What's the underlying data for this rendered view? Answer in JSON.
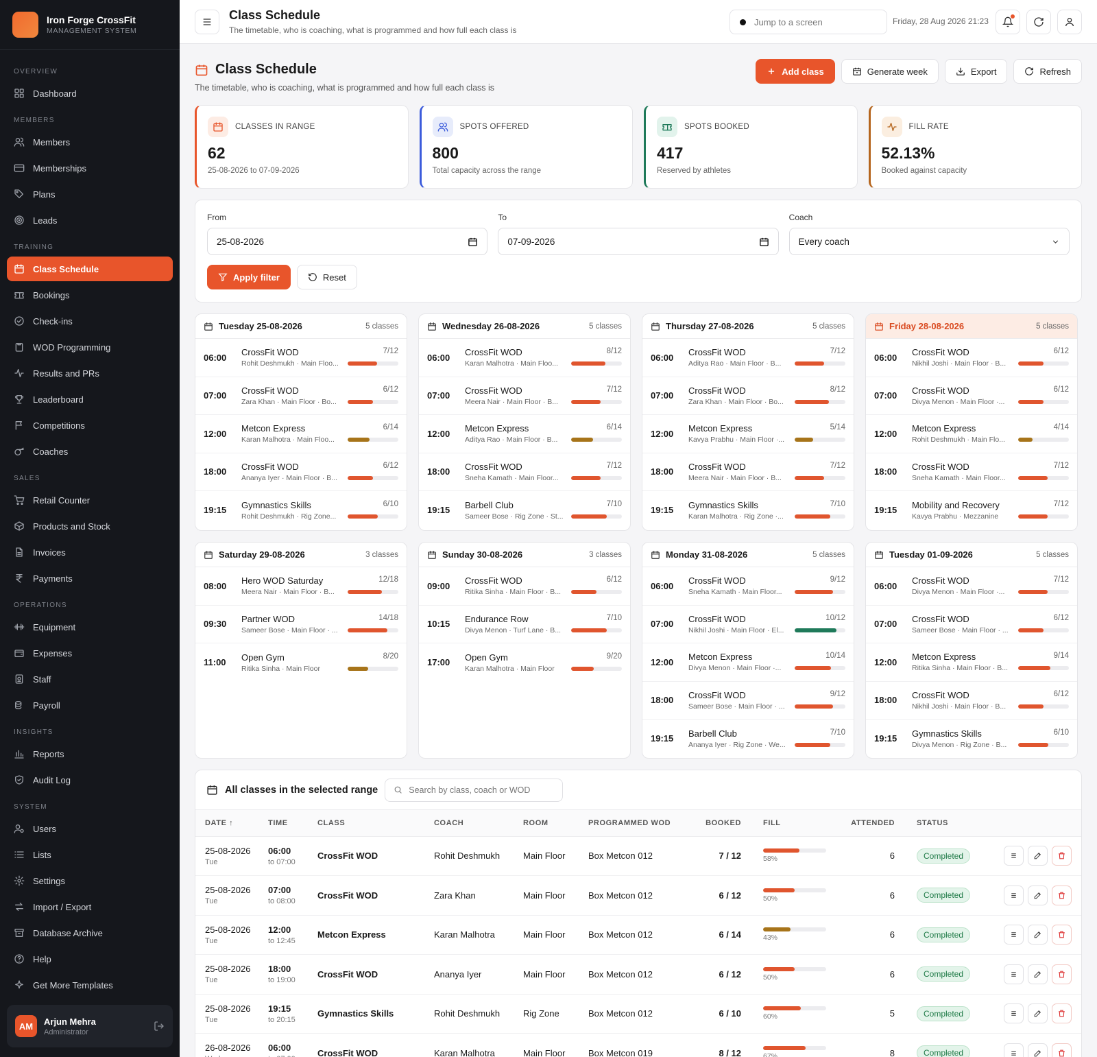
{
  "brand": {
    "name": "Iron Forge CrossFit",
    "sub": "MANAGEMENT SYSTEM"
  },
  "nav": [
    {
      "section": "OVERVIEW",
      "items": [
        {
          "label": "Dashboard",
          "icon": "dashboard-icon"
        }
      ]
    },
    {
      "section": "MEMBERS",
      "items": [
        {
          "label": "Members",
          "icon": "users-icon"
        },
        {
          "label": "Memberships",
          "icon": "card-icon"
        },
        {
          "label": "Plans",
          "icon": "tag-icon"
        },
        {
          "label": "Leads",
          "icon": "target-icon"
        }
      ]
    },
    {
      "section": "TRAINING",
      "items": [
        {
          "label": "Class Schedule",
          "icon": "calendar-icon",
          "active": true
        },
        {
          "label": "Bookings",
          "icon": "ticket-icon"
        },
        {
          "label": "Check-ins",
          "icon": "check-circle-icon"
        },
        {
          "label": "WOD Programming",
          "icon": "clipboard-icon"
        },
        {
          "label": "Results and PRs",
          "icon": "activity-icon"
        },
        {
          "label": "Leaderboard",
          "icon": "trophy-icon"
        },
        {
          "label": "Competitions",
          "icon": "flag-icon"
        },
        {
          "label": "Coaches",
          "icon": "whistle-icon"
        }
      ]
    },
    {
      "section": "SALES",
      "items": [
        {
          "label": "Retail Counter",
          "icon": "cart-icon"
        },
        {
          "label": "Products and Stock",
          "icon": "box-icon"
        },
        {
          "label": "Invoices",
          "icon": "file-icon"
        },
        {
          "label": "Payments",
          "icon": "rupee-icon"
        }
      ]
    },
    {
      "section": "OPERATIONS",
      "items": [
        {
          "label": "Equipment",
          "icon": "dumbbell-icon"
        },
        {
          "label": "Expenses",
          "icon": "wallet-icon"
        },
        {
          "label": "Staff",
          "icon": "badge-icon"
        },
        {
          "label": "Payroll",
          "icon": "coins-icon"
        }
      ]
    },
    {
      "section": "INSIGHTS",
      "items": [
        {
          "label": "Reports",
          "icon": "bar-chart-icon"
        },
        {
          "label": "Audit Log",
          "icon": "shield-icon"
        }
      ]
    },
    {
      "section": "SYSTEM",
      "items": [
        {
          "label": "Users",
          "icon": "user-cog-icon"
        },
        {
          "label": "Lists",
          "icon": "list-icon"
        },
        {
          "label": "Settings",
          "icon": "gear-icon"
        },
        {
          "label": "Import / Export",
          "icon": "swap-icon"
        },
        {
          "label": "Database Archive",
          "icon": "archive-icon"
        },
        {
          "label": "Help",
          "icon": "help-icon"
        },
        {
          "label": "Get More Templates",
          "icon": "sparkle-icon"
        }
      ]
    }
  ],
  "user": {
    "initials": "AM",
    "name": "Arjun Mehra",
    "role": "Administrator"
  },
  "topbar": {
    "title": "Class Schedule",
    "subtitle": "The timetable, who is coaching, what is programmed and how full each class is",
    "search_placeholder": "Jump to a screen",
    "datetime": "Friday, 28 Aug 2026 21:23"
  },
  "page": {
    "title": "Class Schedule",
    "subtitle": "The timetable, who is coaching, what is programmed and how full each class is",
    "actions": {
      "add": "Add class",
      "generate": "Generate week",
      "export": "Export",
      "refresh": "Refresh"
    }
  },
  "stats": [
    {
      "label": "CLASSES IN RANGE",
      "value": "62",
      "sub": "25-08-2026 to 07-09-2026",
      "color": "#e8552b",
      "bg": "#fdece4",
      "icon": "calendar-icon"
    },
    {
      "label": "SPOTS OFFERED",
      "value": "800",
      "sub": "Total capacity across the range",
      "color": "#3b5bdb",
      "bg": "#e7ecfb",
      "icon": "users-icon"
    },
    {
      "label": "SPOTS BOOKED",
      "value": "417",
      "sub": "Reserved by athletes",
      "color": "#1f7a5a",
      "bg": "#e2f3ec",
      "icon": "ticket-icon"
    },
    {
      "label": "FILL RATE",
      "value": "52.13%",
      "sub": "Booked against capacity",
      "color": "#b5651d",
      "bg": "#fbeee0",
      "icon": "activity-icon"
    }
  ],
  "filter": {
    "from_label": "From",
    "from": "25-08-2026",
    "to_label": "To",
    "to": "07-09-2026",
    "coach_label": "Coach",
    "coach": "Every coach",
    "apply": "Apply filter",
    "reset": "Reset"
  },
  "days": [
    {
      "title": "Tuesday 25-08-2026",
      "count": "5 classes",
      "classes": [
        {
          "time": "06:00",
          "name": "CrossFit WOD",
          "cap": "7/12",
          "meta": "Rohit Deshmukh · Main Floo...",
          "fill": 0.58,
          "color": "#e0552e"
        },
        {
          "time": "07:00",
          "name": "CrossFit WOD",
          "cap": "6/12",
          "meta": "Zara Khan · Main Floor · Bo...",
          "fill": 0.5,
          "color": "#e0552e"
        },
        {
          "time": "12:00",
          "name": "Metcon Express",
          "cap": "6/14",
          "meta": "Karan Malhotra · Main Floo...",
          "fill": 0.43,
          "color": "#a7741a"
        },
        {
          "time": "18:00",
          "name": "CrossFit WOD",
          "cap": "6/12",
          "meta": "Ananya Iyer · Main Floor · B...",
          "fill": 0.5,
          "color": "#e0552e"
        },
        {
          "time": "19:15",
          "name": "Gymnastics Skills",
          "cap": "6/10",
          "meta": "Rohit Deshmukh · Rig Zone...",
          "fill": 0.6,
          "color": "#e0552e"
        }
      ]
    },
    {
      "title": "Wednesday 26-08-2026",
      "count": "5 classes",
      "classes": [
        {
          "time": "06:00",
          "name": "CrossFit WOD",
          "cap": "8/12",
          "meta": "Karan Malhotra · Main Floo...",
          "fill": 0.67,
          "color": "#e0552e"
        },
        {
          "time": "07:00",
          "name": "CrossFit WOD",
          "cap": "7/12",
          "meta": "Meera Nair · Main Floor · B...",
          "fill": 0.58,
          "color": "#e0552e"
        },
        {
          "time": "12:00",
          "name": "Metcon Express",
          "cap": "6/14",
          "meta": "Aditya Rao · Main Floor · B...",
          "fill": 0.43,
          "color": "#a7741a"
        },
        {
          "time": "18:00",
          "name": "CrossFit WOD",
          "cap": "7/12",
          "meta": "Sneha Kamath · Main Floor...",
          "fill": 0.58,
          "color": "#e0552e"
        },
        {
          "time": "19:15",
          "name": "Barbell Club",
          "cap": "7/10",
          "meta": "Sameer Bose · Rig Zone · St...",
          "fill": 0.7,
          "color": "#e0552e"
        }
      ]
    },
    {
      "title": "Thursday 27-08-2026",
      "count": "5 classes",
      "classes": [
        {
          "time": "06:00",
          "name": "CrossFit WOD",
          "cap": "7/12",
          "meta": "Aditya Rao · Main Floor · B...",
          "fill": 0.58,
          "color": "#e0552e"
        },
        {
          "time": "07:00",
          "name": "CrossFit WOD",
          "cap": "8/12",
          "meta": "Zara Khan · Main Floor · Bo...",
          "fill": 0.67,
          "color": "#e0552e"
        },
        {
          "time": "12:00",
          "name": "Metcon Express",
          "cap": "5/14",
          "meta": "Kavya Prabhu · Main Floor ·...",
          "fill": 0.36,
          "color": "#a7741a"
        },
        {
          "time": "18:00",
          "name": "CrossFit WOD",
          "cap": "7/12",
          "meta": "Meera Nair · Main Floor · B...",
          "fill": 0.58,
          "color": "#e0552e"
        },
        {
          "time": "19:15",
          "name": "Gymnastics Skills",
          "cap": "7/10",
          "meta": "Karan Malhotra · Rig Zone ·...",
          "fill": 0.7,
          "color": "#e0552e"
        }
      ]
    },
    {
      "title": "Friday 28-08-2026",
      "count": "5 classes",
      "today": true,
      "classes": [
        {
          "time": "06:00",
          "name": "CrossFit WOD",
          "cap": "6/12",
          "meta": "Nikhil Joshi · Main Floor · B...",
          "fill": 0.5,
          "color": "#e0552e"
        },
        {
          "time": "07:00",
          "name": "CrossFit WOD",
          "cap": "6/12",
          "meta": "Divya Menon · Main Floor ·...",
          "fill": 0.5,
          "color": "#e0552e"
        },
        {
          "time": "12:00",
          "name": "Metcon Express",
          "cap": "4/14",
          "meta": "Rohit Deshmukh · Main Flo...",
          "fill": 0.29,
          "color": "#a7741a"
        },
        {
          "time": "18:00",
          "name": "CrossFit WOD",
          "cap": "7/12",
          "meta": "Sneha Kamath · Main Floor...",
          "fill": 0.58,
          "color": "#e0552e"
        },
        {
          "time": "19:15",
          "name": "Mobility and Recovery",
          "cap": "7/12",
          "meta": "Kavya Prabhu · Mezzanine",
          "fill": 0.58,
          "color": "#e0552e"
        }
      ]
    },
    {
      "title": "Saturday 29-08-2026",
      "count": "3 classes",
      "classes": [
        {
          "time": "08:00",
          "name": "Hero WOD Saturday",
          "cap": "12/18",
          "meta": "Meera Nair · Main Floor · B...",
          "fill": 0.67,
          "color": "#e0552e"
        },
        {
          "time": "09:30",
          "name": "Partner WOD",
          "cap": "14/18",
          "meta": "Sameer Bose · Main Floor · ...",
          "fill": 0.78,
          "color": "#e0552e"
        },
        {
          "time": "11:00",
          "name": "Open Gym",
          "cap": "8/20",
          "meta": "Ritika Sinha · Main Floor",
          "fill": 0.4,
          "color": "#a7741a"
        }
      ]
    },
    {
      "title": "Sunday 30-08-2026",
      "count": "3 classes",
      "classes": [
        {
          "time": "09:00",
          "name": "CrossFit WOD",
          "cap": "6/12",
          "meta": "Ritika Sinha · Main Floor · B...",
          "fill": 0.5,
          "color": "#e0552e"
        },
        {
          "time": "10:15",
          "name": "Endurance Row",
          "cap": "7/10",
          "meta": "Divya Menon · Turf Lane · B...",
          "fill": 0.7,
          "color": "#e0552e"
        },
        {
          "time": "17:00",
          "name": "Open Gym",
          "cap": "9/20",
          "meta": "Karan Malhotra · Main Floor",
          "fill": 0.45,
          "color": "#e0552e"
        }
      ]
    },
    {
      "title": "Monday 31-08-2026",
      "count": "5 classes",
      "classes": [
        {
          "time": "06:00",
          "name": "CrossFit WOD",
          "cap": "9/12",
          "meta": "Sneha Kamath · Main Floor...",
          "fill": 0.75,
          "color": "#e0552e"
        },
        {
          "time": "07:00",
          "name": "CrossFit WOD",
          "cap": "10/12",
          "meta": "Nikhil Joshi · Main Floor · El...",
          "fill": 0.83,
          "color": "#1f7a5a"
        },
        {
          "time": "12:00",
          "name": "Metcon Express",
          "cap": "10/14",
          "meta": "Divya Menon · Main Floor ·...",
          "fill": 0.71,
          "color": "#e0552e"
        },
        {
          "time": "18:00",
          "name": "CrossFit WOD",
          "cap": "9/12",
          "meta": "Sameer Bose · Main Floor · ...",
          "fill": 0.75,
          "color": "#e0552e"
        },
        {
          "time": "19:15",
          "name": "Barbell Club",
          "cap": "7/10",
          "meta": "Ananya Iyer · Rig Zone · We...",
          "fill": 0.7,
          "color": "#e0552e"
        }
      ]
    },
    {
      "title": "Tuesday 01-09-2026",
      "count": "5 classes",
      "classes": [
        {
          "time": "06:00",
          "name": "CrossFit WOD",
          "cap": "7/12",
          "meta": "Divya Menon · Main Floor ·...",
          "fill": 0.58,
          "color": "#e0552e"
        },
        {
          "time": "07:00",
          "name": "CrossFit WOD",
          "cap": "6/12",
          "meta": "Sameer Bose · Main Floor · ...",
          "fill": 0.5,
          "color": "#e0552e"
        },
        {
          "time": "12:00",
          "name": "Metcon Express",
          "cap": "9/14",
          "meta": "Ritika Sinha · Main Floor · B...",
          "fill": 0.64,
          "color": "#e0552e"
        },
        {
          "time": "18:00",
          "name": "CrossFit WOD",
          "cap": "6/12",
          "meta": "Nikhil Joshi · Main Floor · B...",
          "fill": 0.5,
          "color": "#e0552e"
        },
        {
          "time": "19:15",
          "name": "Gymnastics Skills",
          "cap": "6/10",
          "meta": "Divya Menon · Rig Zone · B...",
          "fill": 0.6,
          "color": "#e0552e"
        }
      ]
    }
  ],
  "table": {
    "title": "All classes in the selected range",
    "search_placeholder": "Search by class, coach or WOD",
    "headers": [
      "DATE ↑",
      "TIME",
      "CLASS",
      "COACH",
      "ROOM",
      "PROGRAMMED WOD",
      "BOOKED",
      "FILL",
      "ATTENDED",
      "STATUS"
    ],
    "rows": [
      {
        "date": "25-08-2026",
        "dow": "Tue",
        "time": "06:00",
        "end": "to 07:00",
        "class": "CrossFit WOD",
        "coach": "Rohit Deshmukh",
        "room": "Main Floor",
        "wod": "Box Metcon 012",
        "booked": "7 / 12",
        "fill": 0.58,
        "pct": "58%",
        "color": "#e0552e",
        "attended": "6",
        "status": "Completed"
      },
      {
        "date": "25-08-2026",
        "dow": "Tue",
        "time": "07:00",
        "end": "to 08:00",
        "class": "CrossFit WOD",
        "coach": "Zara Khan",
        "room": "Main Floor",
        "wod": "Box Metcon 012",
        "booked": "6 / 12",
        "fill": 0.5,
        "pct": "50%",
        "color": "#e0552e",
        "attended": "6",
        "status": "Completed"
      },
      {
        "date": "25-08-2026",
        "dow": "Tue",
        "time": "12:00",
        "end": "to 12:45",
        "class": "Metcon Express",
        "coach": "Karan Malhotra",
        "room": "Main Floor",
        "wod": "Box Metcon 012",
        "booked": "6 / 14",
        "fill": 0.43,
        "pct": "43%",
        "color": "#a7741a",
        "attended": "6",
        "status": "Completed"
      },
      {
        "date": "25-08-2026",
        "dow": "Tue",
        "time": "18:00",
        "end": "to 19:00",
        "class": "CrossFit WOD",
        "coach": "Ananya Iyer",
        "room": "Main Floor",
        "wod": "Box Metcon 012",
        "booked": "6 / 12",
        "fill": 0.5,
        "pct": "50%",
        "color": "#e0552e",
        "attended": "6",
        "status": "Completed"
      },
      {
        "date": "25-08-2026",
        "dow": "Tue",
        "time": "19:15",
        "end": "to 20:15",
        "class": "Gymnastics Skills",
        "coach": "Rohit Deshmukh",
        "room": "Rig Zone",
        "wod": "Box Metcon 012",
        "booked": "6 / 10",
        "fill": 0.6,
        "pct": "60%",
        "color": "#e0552e",
        "attended": "5",
        "status": "Completed"
      },
      {
        "date": "26-08-2026",
        "dow": "Wed",
        "time": "06:00",
        "end": "to 07:00",
        "class": "CrossFit WOD",
        "coach": "Karan Malhotra",
        "room": "Main Floor",
        "wod": "Box Metcon 019",
        "booked": "8 / 12",
        "fill": 0.67,
        "pct": "67%",
        "color": "#e0552e",
        "attended": "8",
        "status": "Completed"
      }
    ]
  }
}
